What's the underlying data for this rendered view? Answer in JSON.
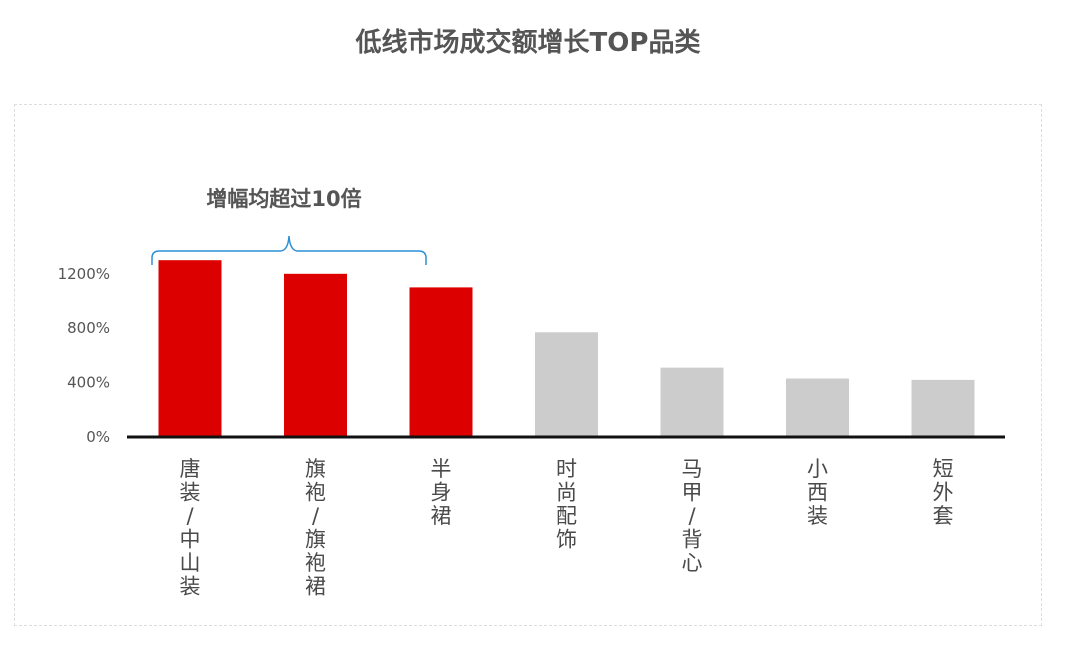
{
  "chart_data": {
    "type": "bar",
    "title": "低线市场成交额增长TOP品类",
    "categories": [
      "唐装/中山装",
      "旗袍/旗袍裙",
      "半身裙",
      "时尚配饰",
      "马甲/背心",
      "小西装",
      "短外套"
    ],
    "values": [
      1300,
      1200,
      1100,
      770,
      510,
      430,
      420
    ],
    "highlighted": [
      true,
      true,
      true,
      false,
      false,
      false,
      false
    ],
    "ylim": [
      0,
      1400
    ],
    "yticks": [
      0,
      400,
      800,
      1200
    ],
    "ytick_labels": [
      "0%",
      "400%",
      "800%",
      "1200%"
    ],
    "grid": false,
    "annotation": "增幅均超过10倍",
    "colors": {
      "highlight": "#dd0000",
      "default": "#cccccc",
      "bracket": "#2b8fd6",
      "axis": "#111111"
    }
  }
}
